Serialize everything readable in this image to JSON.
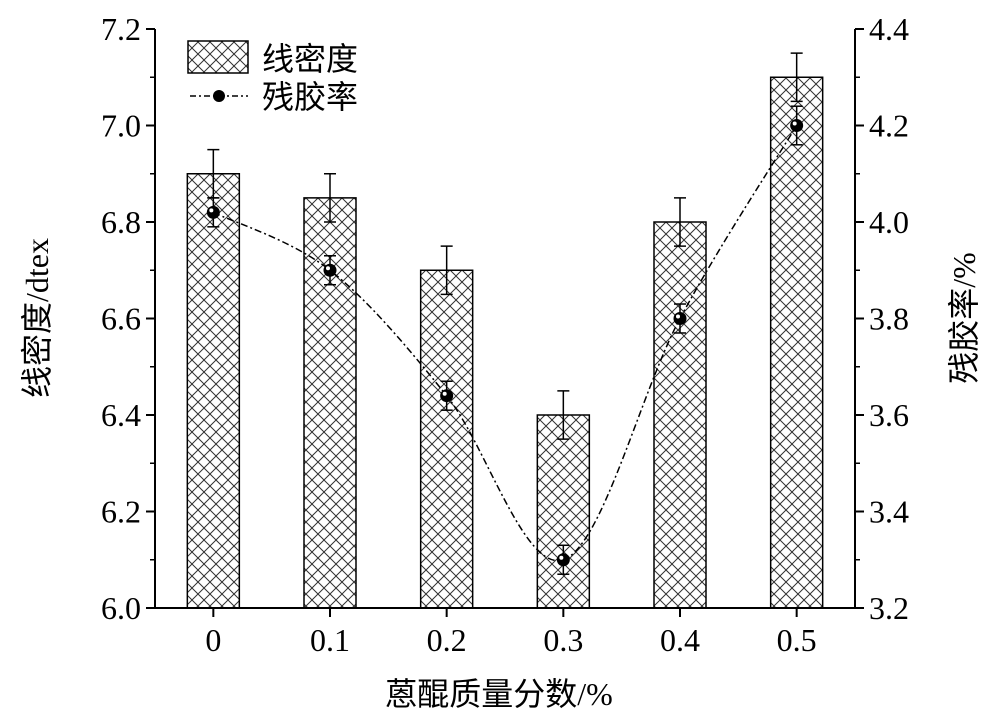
{
  "chart_data": {
    "type": "bar+line",
    "xlabel": "蒽醌质量分数/%",
    "ylabel_left": "线密度/dtex",
    "ylabel_right": "残胶率/%",
    "categories": [
      "0",
      "0.1",
      "0.2",
      "0.3",
      "0.4",
      "0.5"
    ],
    "ylim_left": [
      6.0,
      7.2
    ],
    "ylim_right": [
      3.2,
      4.4
    ],
    "yticks_left": [
      "6.0",
      "6.2",
      "6.4",
      "6.6",
      "6.8",
      "7.0",
      "7.2"
    ],
    "yticks_right": [
      "3.2",
      "3.4",
      "3.6",
      "3.8",
      "4.0",
      "4.2",
      "4.4"
    ],
    "legend_position": "top-left",
    "grid": false,
    "series": [
      {
        "name": "线密度",
        "kind": "bar",
        "axis": "left",
        "pattern": "crosshatch",
        "values": [
          6.9,
          6.85,
          6.7,
          6.4,
          6.8,
          7.1
        ],
        "errors": [
          0.05,
          0.05,
          0.05,
          0.05,
          0.05,
          0.05
        ]
      },
      {
        "name": "残胶率",
        "kind": "line",
        "axis": "right",
        "line_style": "dash-dot",
        "values": [
          4.02,
          3.9,
          3.64,
          3.3,
          3.8,
          4.2
        ],
        "errors": [
          0.03,
          0.03,
          0.03,
          0.03,
          0.03,
          0.04
        ]
      }
    ]
  }
}
